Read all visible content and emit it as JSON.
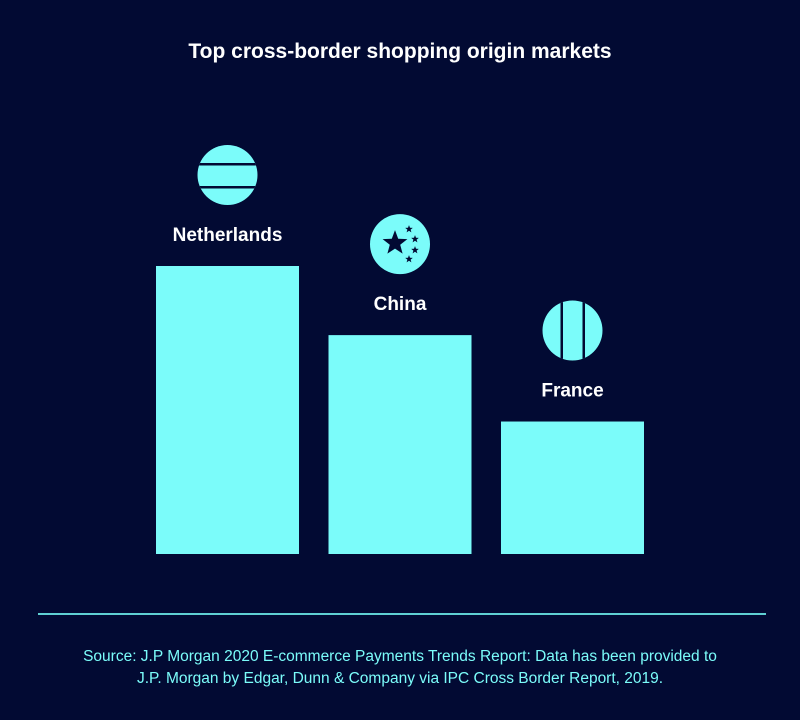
{
  "chart_data": {
    "type": "bar",
    "title": "Top cross-border shopping origin markets",
    "categories": [
      "Netherlands",
      "China",
      "France"
    ],
    "values": [
      1.0,
      0.76,
      0.46
    ],
    "icons": [
      "netherlands-flag-icon",
      "china-flag-icon",
      "france-flag-icon"
    ],
    "xlabel": "",
    "ylabel": "",
    "grid": false,
    "colors": {
      "bar": "#7bfcfa",
      "background": "#020a33",
      "text": "#ffffff"
    }
  },
  "source": {
    "line1": "Source: J.P Morgan 2020 E-commerce Payments Trends Report: Data has been provided to",
    "line2": "J.P. Morgan by Edgar, Dunn & Company via IPC Cross Border Report, 2019."
  }
}
